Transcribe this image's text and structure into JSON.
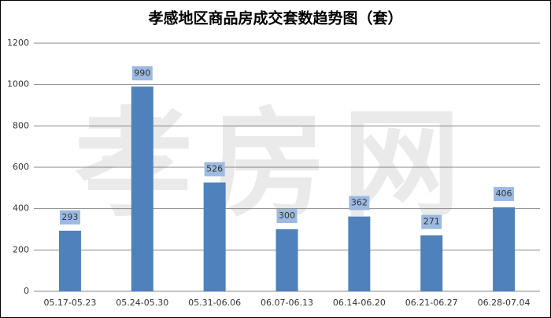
{
  "chart_data": {
    "type": "bar",
    "title": "孝感地区商品房成交套数趋势图（套）",
    "watermark": "孝房网",
    "categories": [
      "05.17-05.23",
      "05.24-05.30",
      "05.31-06.06",
      "06.07-06.13",
      "06.14-06.20",
      "06.21-06.27",
      "06.28-07.04"
    ],
    "values": [
      293,
      990,
      526,
      300,
      362,
      271,
      406
    ],
    "color": "#4f81bd",
    "ylim": [
      0,
      1200
    ],
    "yticks": [
      0,
      200,
      400,
      600,
      800,
      1000,
      1200
    ],
    "grid": true
  }
}
